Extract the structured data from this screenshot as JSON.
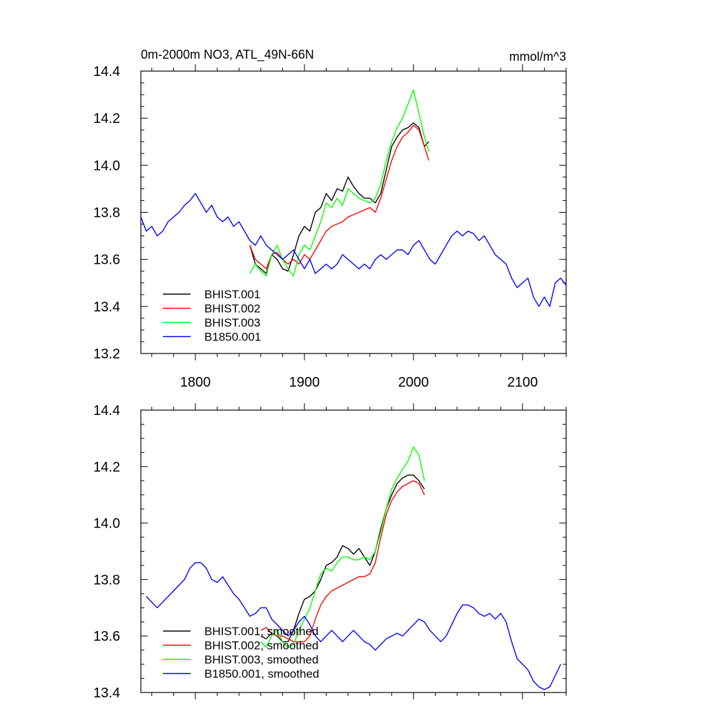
{
  "chart_data": [
    {
      "type": "line",
      "title": "0m-2000m NO3, ATL_49N-66N",
      "units": "mmol/m^3",
      "xlim": [
        1750,
        2140
      ],
      "ylim": [
        13.2,
        14.4
      ],
      "xticks": [
        1800,
        1900,
        2000,
        2100
      ],
      "yticks": [
        13.2,
        13.4,
        13.6,
        13.8,
        14.0,
        14.2,
        14.4
      ],
      "grid": false,
      "legend_position": "bottom-left",
      "series": [
        {
          "name": "BHIST.001",
          "color": "#000000",
          "x": [
            1850,
            1855,
            1860,
            1865,
            1870,
            1875,
            1880,
            1885,
            1890,
            1895,
            1900,
            1905,
            1910,
            1915,
            1920,
            1925,
            1930,
            1935,
            1940,
            1945,
            1950,
            1955,
            1960,
            1965,
            1970,
            1975,
            1980,
            1985,
            1990,
            1995,
            2000,
            2005,
            2010,
            2014
          ],
          "y": [
            13.66,
            13.58,
            13.56,
            13.54,
            13.62,
            13.6,
            13.56,
            13.55,
            13.62,
            13.7,
            13.74,
            13.72,
            13.8,
            13.82,
            13.88,
            13.85,
            13.9,
            13.89,
            13.95,
            13.91,
            13.88,
            13.86,
            13.86,
            13.84,
            13.88,
            13.98,
            14.08,
            14.12,
            14.15,
            14.16,
            14.18,
            14.16,
            14.08,
            14.1
          ]
        },
        {
          "name": "BHIST.002",
          "color": "#ff0000",
          "x": [
            1850,
            1855,
            1860,
            1865,
            1870,
            1875,
            1880,
            1885,
            1890,
            1895,
            1900,
            1905,
            1910,
            1915,
            1920,
            1925,
            1930,
            1935,
            1940,
            1945,
            1950,
            1955,
            1960,
            1965,
            1970,
            1975,
            1980,
            1985,
            1990,
            1995,
            2000,
            2005,
            2010,
            2014
          ],
          "y": [
            13.66,
            13.6,
            13.58,
            13.56,
            13.62,
            13.63,
            13.6,
            13.58,
            13.6,
            13.58,
            13.62,
            13.6,
            13.64,
            13.68,
            13.72,
            13.74,
            13.75,
            13.76,
            13.78,
            13.79,
            13.8,
            13.81,
            13.82,
            13.8,
            13.86,
            13.94,
            14.02,
            14.08,
            14.12,
            14.14,
            14.17,
            14.15,
            14.08,
            14.02
          ]
        },
        {
          "name": "BHIST.003",
          "color": "#00ff00",
          "x": [
            1850,
            1855,
            1860,
            1865,
            1870,
            1875,
            1880,
            1885,
            1890,
            1895,
            1900,
            1905,
            1910,
            1915,
            1920,
            1925,
            1930,
            1935,
            1940,
            1945,
            1950,
            1955,
            1960,
            1965,
            1970,
            1975,
            1980,
            1985,
            1990,
            1995,
            2000,
            2005,
            2010,
            2014
          ],
          "y": [
            13.54,
            13.58,
            13.55,
            13.53,
            13.62,
            13.66,
            13.6,
            13.56,
            13.53,
            13.62,
            13.66,
            13.64,
            13.7,
            13.76,
            13.84,
            13.82,
            13.86,
            13.83,
            13.9,
            13.88,
            13.86,
            13.85,
            13.84,
            13.86,
            13.92,
            14.02,
            14.1,
            14.16,
            14.2,
            14.26,
            14.32,
            14.22,
            14.12,
            14.06
          ]
        },
        {
          "name": "B1850.001",
          "color": "#0000ff",
          "x": [
            1750,
            1755,
            1760,
            1765,
            1770,
            1775,
            1780,
            1785,
            1790,
            1795,
            1800,
            1805,
            1810,
            1815,
            1820,
            1825,
            1830,
            1835,
            1840,
            1845,
            1850,
            1855,
            1860,
            1865,
            1870,
            1875,
            1880,
            1885,
            1890,
            1895,
            1900,
            1905,
            1910,
            1915,
            1920,
            1925,
            1930,
            1935,
            1940,
            1945,
            1950,
            1955,
            1960,
            1965,
            1970,
            1975,
            1980,
            1985,
            1990,
            1995,
            2000,
            2005,
            2010,
            2015,
            2020,
            2025,
            2030,
            2035,
            2040,
            2045,
            2050,
            2055,
            2060,
            2065,
            2070,
            2075,
            2080,
            2085,
            2090,
            2095,
            2100,
            2105,
            2110,
            2115,
            2120,
            2125,
            2130,
            2135,
            2140
          ],
          "y": [
            13.78,
            13.72,
            13.74,
            13.7,
            13.72,
            13.76,
            13.78,
            13.8,
            13.83,
            13.85,
            13.88,
            13.84,
            13.8,
            13.83,
            13.78,
            13.76,
            13.78,
            13.74,
            13.76,
            13.72,
            13.68,
            13.66,
            13.7,
            13.66,
            13.64,
            13.62,
            13.6,
            13.62,
            13.64,
            13.6,
            13.56,
            13.6,
            13.54,
            13.56,
            13.58,
            13.56,
            13.58,
            13.62,
            13.6,
            13.58,
            13.56,
            13.58,
            13.56,
            13.6,
            13.62,
            13.6,
            13.62,
            13.64,
            13.64,
            13.62,
            13.66,
            13.68,
            13.64,
            13.6,
            13.58,
            13.62,
            13.66,
            13.7,
            13.72,
            13.7,
            13.72,
            13.71,
            13.68,
            13.7,
            13.66,
            13.62,
            13.6,
            13.58,
            13.52,
            13.48,
            13.5,
            13.52,
            13.44,
            13.4,
            13.44,
            13.4,
            13.5,
            13.52,
            13.49
          ]
        }
      ]
    },
    {
      "type": "line",
      "xlim": [
        1750,
        2140
      ],
      "ylim": [
        13.4,
        14.4
      ],
      "xticks": [
        1800,
        1900,
        2000,
        2100
      ],
      "yticks": [
        13.4,
        13.6,
        13.8,
        14.0,
        14.2,
        14.4
      ],
      "grid": false,
      "legend_position": "bottom-left",
      "series": [
        {
          "name": "BHIST.001, smoothed",
          "color": "#000000",
          "x": [
            1860,
            1865,
            1870,
            1875,
            1880,
            1885,
            1890,
            1895,
            1900,
            1905,
            1910,
            1915,
            1920,
            1925,
            1930,
            1935,
            1940,
            1945,
            1950,
            1955,
            1960,
            1965,
            1970,
            1975,
            1980,
            1985,
            1990,
            1995,
            2000,
            2005,
            2010
          ],
          "y": [
            13.6,
            13.59,
            13.61,
            13.6,
            13.58,
            13.58,
            13.62,
            13.68,
            13.73,
            13.74,
            13.76,
            13.8,
            13.85,
            13.86,
            13.88,
            13.92,
            13.91,
            13.89,
            13.91,
            13.88,
            13.85,
            13.9,
            13.98,
            14.05,
            14.1,
            14.14,
            14.16,
            14.17,
            14.17,
            14.15,
            14.12
          ]
        },
        {
          "name": "BHIST.002, smoothed",
          "color": "#ff0000",
          "x": [
            1860,
            1865,
            1870,
            1875,
            1880,
            1885,
            1890,
            1895,
            1900,
            1905,
            1910,
            1915,
            1920,
            1925,
            1930,
            1935,
            1940,
            1945,
            1950,
            1955,
            1960,
            1965,
            1970,
            1975,
            1980,
            1985,
            1990,
            1995,
            2000,
            2005,
            2010
          ],
          "y": [
            13.62,
            13.63,
            13.61,
            13.6,
            13.6,
            13.59,
            13.58,
            13.58,
            13.58,
            13.6,
            13.66,
            13.71,
            13.74,
            13.76,
            13.77,
            13.78,
            13.79,
            13.8,
            13.81,
            13.81,
            13.82,
            13.86,
            13.95,
            14.03,
            14.08,
            14.11,
            14.13,
            14.14,
            14.15,
            14.14,
            14.1
          ]
        },
        {
          "name": "BHIST.003, smoothed",
          "color": "#00ff00",
          "x": [
            1860,
            1865,
            1870,
            1875,
            1880,
            1885,
            1890,
            1895,
            1900,
            1905,
            1910,
            1915,
            1920,
            1925,
            1930,
            1935,
            1940,
            1945,
            1950,
            1955,
            1960,
            1965,
            1970,
            1975,
            1980,
            1985,
            1990,
            1995,
            2000,
            2005,
            2010
          ],
          "y": [
            13.58,
            13.56,
            13.6,
            13.62,
            13.58,
            13.56,
            13.57,
            13.62,
            13.66,
            13.7,
            13.76,
            13.82,
            13.84,
            13.83,
            13.86,
            13.88,
            13.88,
            13.87,
            13.87,
            13.88,
            13.87,
            13.9,
            13.97,
            14.05,
            14.12,
            14.16,
            14.19,
            14.22,
            14.27,
            14.24,
            14.15
          ]
        },
        {
          "name": "B1850.001, smoothed",
          "color": "#0000ff",
          "x": [
            1755,
            1760,
            1765,
            1770,
            1775,
            1780,
            1785,
            1790,
            1795,
            1800,
            1805,
            1810,
            1815,
            1820,
            1825,
            1830,
            1835,
            1840,
            1845,
            1850,
            1855,
            1860,
            1865,
            1870,
            1875,
            1880,
            1885,
            1890,
            1895,
            1900,
            1905,
            1910,
            1915,
            1920,
            1925,
            1930,
            1935,
            1940,
            1945,
            1950,
            1955,
            1960,
            1965,
            1970,
            1975,
            1980,
            1985,
            1990,
            1995,
            2000,
            2005,
            2010,
            2015,
            2020,
            2025,
            2030,
            2035,
            2040,
            2045,
            2050,
            2055,
            2060,
            2065,
            2070,
            2075,
            2080,
            2085,
            2090,
            2095,
            2100,
            2105,
            2110,
            2115,
            2120,
            2125,
            2130,
            2135
          ],
          "y": [
            13.74,
            13.72,
            13.7,
            13.72,
            13.74,
            13.76,
            13.78,
            13.8,
            13.84,
            13.86,
            13.86,
            13.84,
            13.8,
            13.79,
            13.81,
            13.78,
            13.75,
            13.73,
            13.7,
            13.67,
            13.68,
            13.7,
            13.7,
            13.66,
            13.64,
            13.62,
            13.6,
            13.62,
            13.65,
            13.67,
            13.64,
            13.6,
            13.58,
            13.6,
            13.62,
            13.6,
            13.58,
            13.6,
            13.62,
            13.6,
            13.58,
            13.57,
            13.55,
            13.57,
            13.59,
            13.6,
            13.61,
            13.6,
            13.62,
            13.64,
            13.66,
            13.65,
            13.62,
            13.6,
            13.58,
            13.6,
            13.64,
            13.68,
            13.71,
            13.71,
            13.7,
            13.68,
            13.67,
            13.68,
            13.66,
            13.68,
            13.65,
            13.58,
            13.52,
            13.5,
            13.48,
            13.44,
            13.42,
            13.41,
            13.42,
            13.46,
            13.5
          ]
        }
      ]
    }
  ]
}
